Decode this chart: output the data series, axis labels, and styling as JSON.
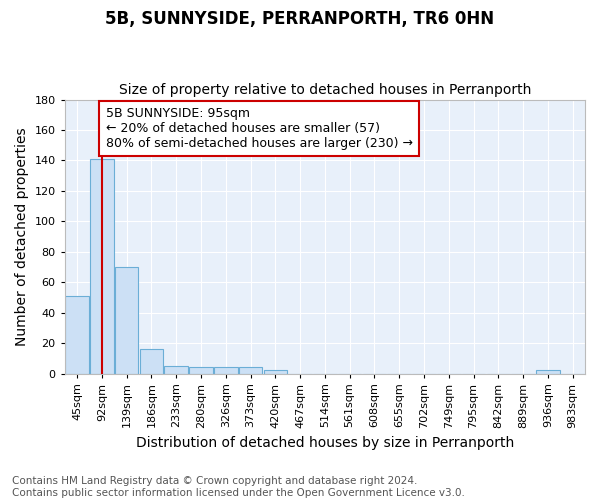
{
  "title": "5B, SUNNYSIDE, PERRANPORTH, TR6 0HN",
  "subtitle": "Size of property relative to detached houses in Perranporth",
  "xlabel": "Distribution of detached houses by size in Perranporth",
  "ylabel": "Number of detached properties",
  "categories": [
    "45sqm",
    "92sqm",
    "139sqm",
    "186sqm",
    "233sqm",
    "280sqm",
    "326sqm",
    "373sqm",
    "420sqm",
    "467sqm",
    "514sqm",
    "561sqm",
    "608sqm",
    "655sqm",
    "702sqm",
    "749sqm",
    "795sqm",
    "842sqm",
    "889sqm",
    "936sqm",
    "983sqm"
  ],
  "values": [
    51,
    141,
    70,
    16,
    5,
    4,
    4,
    4,
    2,
    0,
    0,
    0,
    0,
    0,
    0,
    0,
    0,
    0,
    0,
    2,
    0
  ],
  "bar_color": "#cce0f5",
  "bar_edge_color": "#6baed6",
  "vline_x": 1,
  "vline_color": "#cc0000",
  "annotation_text": "5B SUNNYSIDE: 95sqm\n← 20% of detached houses are smaller (57)\n80% of semi-detached houses are larger (230) →",
  "annotation_box_color": "#ffffff",
  "annotation_box_edge": "#cc0000",
  "ylim": [
    0,
    180
  ],
  "yticks": [
    0,
    20,
    40,
    60,
    80,
    100,
    120,
    140,
    160,
    180
  ],
  "footer": "Contains HM Land Registry data © Crown copyright and database right 2024.\nContains public sector information licensed under the Open Government Licence v3.0.",
  "bg_color": "#e8f0fa",
  "fig_bg_color": "#ffffff",
  "grid_color": "#ffffff",
  "title_fontsize": 12,
  "subtitle_fontsize": 10,
  "axis_label_fontsize": 10,
  "tick_fontsize": 8,
  "annotation_fontsize": 9,
  "footer_fontsize": 7.5
}
